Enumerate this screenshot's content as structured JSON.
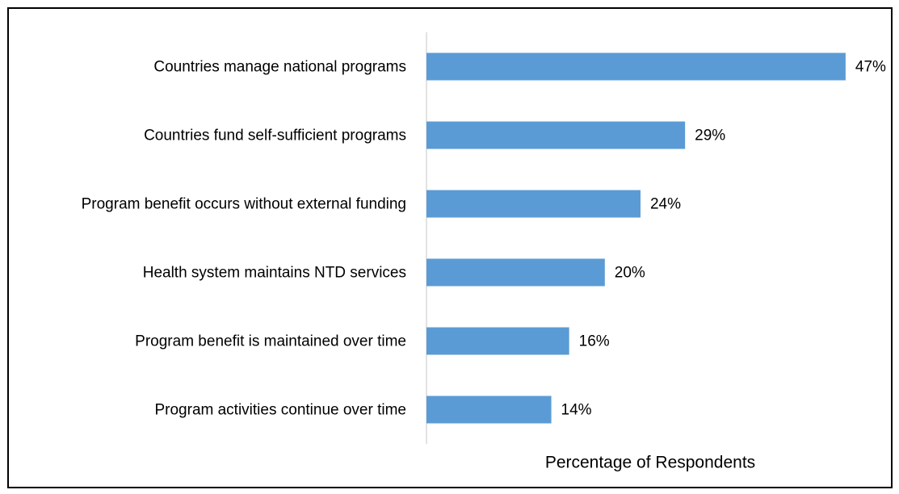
{
  "chart_data": {
    "type": "bar",
    "orientation": "horizontal",
    "categories": [
      "Countries manage national programs",
      "Countries fund self-sufficient programs",
      "Program benefit occurs without external funding",
      "Health system maintains NTD services",
      "Program benefit is maintained over time",
      "Program activities continue over time"
    ],
    "values": [
      47,
      29,
      24,
      20,
      16,
      14
    ],
    "value_labels": [
      "47%",
      "29%",
      "24%",
      "20%",
      "16%",
      "14%"
    ],
    "color": "#5b9bd5",
    "xlabel": "Percentage of Respondents",
    "xlim": [
      0,
      50
    ]
  }
}
